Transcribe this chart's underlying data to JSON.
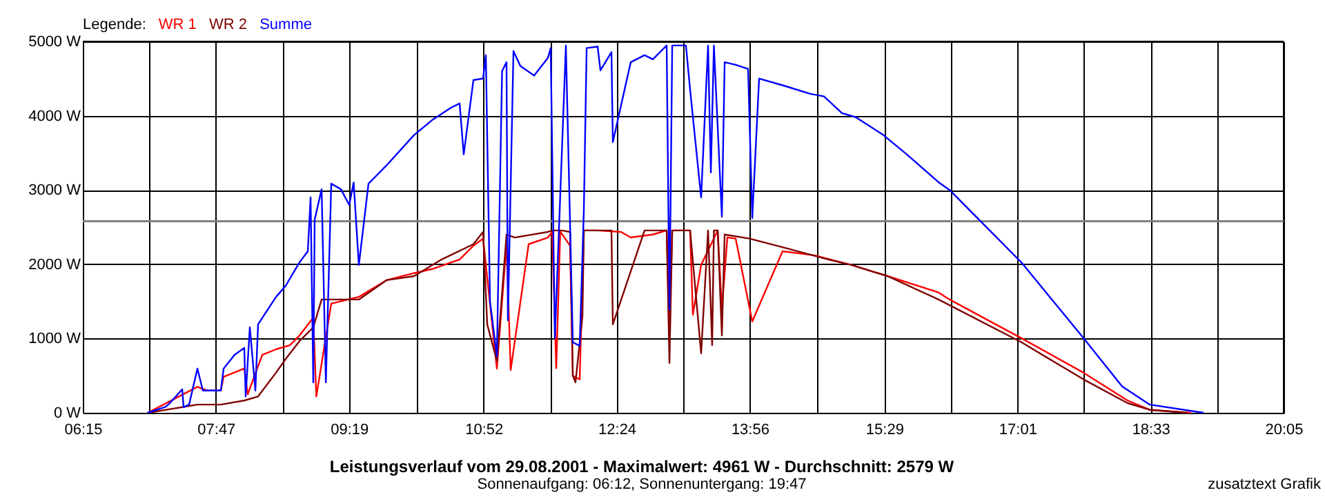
{
  "chart_data": {
    "type": "line",
    "title": "Leistungsverlauf vom 29.08.2001 - Maximalwert: 4961 W - Durchschnitt: 2579 W",
    "subtitle": "Sonnenaufgang: 06:12, Sonnenuntergang: 19:47",
    "legend_title": "Legende:",
    "legend": "top left",
    "annotations": [
      "zusatztext Grafik"
    ],
    "xlim": [
      6.25,
      20.083
    ],
    "xticks": [
      {
        "value": 6.25,
        "label": "06:15"
      },
      {
        "value": 7.017,
        "label": null
      },
      {
        "value": 7.783,
        "label": "07:47"
      },
      {
        "value": 8.55,
        "label": null
      },
      {
        "value": 9.317,
        "label": "09:19"
      },
      {
        "value": 10.092,
        "label": null
      },
      {
        "value": 10.867,
        "label": "10:52"
      },
      {
        "value": 11.633,
        "label": null
      },
      {
        "value": 12.4,
        "label": "12:24"
      },
      {
        "value": 13.167,
        "label": null
      },
      {
        "value": 13.933,
        "label": "13:56"
      },
      {
        "value": 14.708,
        "label": null
      },
      {
        "value": 15.483,
        "label": "15:29"
      },
      {
        "value": 16.25,
        "label": null
      },
      {
        "value": 17.017,
        "label": "17:01"
      },
      {
        "value": 17.783,
        "label": null
      },
      {
        "value": 18.55,
        "label": "18:33"
      },
      {
        "value": 19.317,
        "label": null
      },
      {
        "value": 20.083,
        "label": "20:05"
      }
    ],
    "ylim": [
      0,
      5000
    ],
    "yticks": [
      {
        "value": 0,
        "label": "0 W"
      },
      {
        "value": 1000,
        "label": "1000 W"
      },
      {
        "value": 2000,
        "label": "2000 W"
      },
      {
        "value": 3000,
        "label": "3000 W"
      },
      {
        "value": 4000,
        "label": "4000 W"
      },
      {
        "value": 5000,
        "label": "5000 W"
      }
    ],
    "grid": true,
    "marker": "none",
    "line_style": "solid",
    "ref_lines": [
      {
        "axis": "y",
        "value": 2579,
        "color": "#808080"
      }
    ],
    "series": [
      {
        "name": "WR 1",
        "color": "#ff0000",
        "x": [
          6.997,
          7.57,
          7.681,
          7.84,
          7.872,
          8.11,
          8.15,
          8.317,
          8.476,
          8.635,
          8.746,
          8.905,
          8.94,
          9.112,
          9.43,
          9.748,
          10.066,
          10.273,
          10.591,
          10.75,
          10.861,
          11.02,
          11.131,
          11.179,
          11.386,
          11.608,
          11.656,
          11.704,
          11.75,
          11.863,
          11.895,
          11.974,
          12.022,
          12.181,
          12.451,
          12.562,
          12.817,
          12.976,
          13.008,
          13.04,
          13.246,
          13.278,
          13.373,
          13.564,
          13.612,
          13.675,
          13.771,
          13.962,
          14.311,
          14.677,
          15.106,
          15.52,
          16.108,
          16.235,
          17.062,
          17.778,
          18.286,
          18.541,
          19.018
        ],
        "values": [
          0,
          350,
          300,
          300,
          485,
          595,
          250,
          780,
          855,
          910,
          1040,
          1280,
          220,
          1470,
          1560,
          1785,
          1880,
          1935,
          2065,
          2250,
          2345,
          595,
          2270,
          575,
          2270,
          2360,
          2435,
          600,
          2440,
          2250,
          500,
          450,
          2455,
          2455,
          2435,
          2360,
          2400,
          2455,
          1135,
          2455,
          2455,
          1320,
          1990,
          2455,
          1390,
          2360,
          2345,
          1230,
          2175,
          2120,
          1990,
          1840,
          1620,
          1525,
          1005,
          540,
          165,
          40,
          0
        ]
      },
      {
        "name": "WR 2",
        "color": "#800000",
        "x": [
          6.997,
          7.57,
          7.84,
          8.11,
          8.269,
          8.476,
          8.587,
          8.746,
          8.905,
          9.001,
          9.223,
          9.43,
          9.748,
          10.066,
          10.384,
          10.75,
          10.861,
          10.909,
          11.02,
          11.131,
          11.227,
          11.608,
          11.656,
          11.767,
          11.863,
          11.895,
          11.926,
          12.006,
          12.022,
          12.34,
          12.356,
          12.721,
          12.976,
          13.008,
          13.04,
          13.246,
          13.373,
          13.453,
          13.5,
          13.52,
          13.564,
          13.612,
          13.644,
          13.93,
          14.311,
          14.836,
          15.106,
          15.52,
          16.108,
          17.062,
          17.778,
          18.286,
          18.541,
          18.97
        ],
        "values": [
          0,
          110,
          110,
          165,
          220,
          540,
          725,
          965,
          1150,
          1525,
          1525,
          1525,
          1785,
          1840,
          2065,
          2270,
          2435,
          1190,
          700,
          2400,
          2360,
          2435,
          2455,
          2455,
          2435,
          500,
          410,
          1300,
          2455,
          2455,
          1190,
          2455,
          2455,
          670,
          2455,
          2455,
          800,
          2455,
          910,
          2455,
          2455,
          1040,
          2400,
          2345,
          2230,
          2065,
          1990,
          1840,
          1525,
          950,
          450,
          130,
          40,
          0
        ]
      },
      {
        "name": "Summe",
        "color": "#0000ff",
        "x": [
          6.997,
          7.204,
          7.252,
          7.395,
          7.411,
          7.474,
          7.57,
          7.633,
          7.84,
          7.872,
          7.999,
          8.11,
          8.126,
          8.174,
          8.238,
          8.269,
          8.476,
          8.587,
          8.746,
          8.842,
          8.874,
          8.905,
          8.921,
          9.001,
          9.05,
          9.112,
          9.223,
          9.319,
          9.37,
          9.43,
          9.541,
          9.748,
          10.066,
          10.273,
          10.495,
          10.591,
          10.638,
          10.75,
          10.861,
          10.893,
          10.941,
          11.02,
          11.08,
          11.131,
          11.147,
          11.211,
          11.29,
          11.449,
          11.608,
          11.64,
          11.688,
          11.815,
          11.895,
          11.974,
          12.022,
          12.054,
          12.181,
          12.213,
          12.34,
          12.356,
          12.562,
          12.721,
          12.817,
          12.976,
          13.008,
          13.04,
          13.198,
          13.246,
          13.373,
          13.453,
          13.485,
          13.52,
          13.612,
          13.644,
          13.771,
          13.914,
          13.962,
          14.041,
          14.311,
          14.629,
          14.788,
          14.995,
          15.154,
          15.472,
          15.742,
          16.108,
          16.235,
          17.062,
          17.778,
          18.223,
          18.541,
          19.161
        ],
        "values": [
          0,
          80,
          130,
          316,
          75,
          110,
          595,
          300,
          300,
          595,
          780,
          875,
          220,
          1150,
          300,
          1190,
          1560,
          1710,
          2025,
          2175,
          2900,
          410,
          2600,
          3010,
          410,
          3085,
          3010,
          2800,
          3100,
          1990,
          3085,
          3330,
          3740,
          3940,
          4110,
          4165,
          3480,
          4480,
          4500,
          4815,
          1500,
          760,
          4600,
          4720,
          1245,
          4870,
          4670,
          4540,
          4780,
          4910,
          1005,
          4945,
          950,
          900,
          2730,
          4910,
          4930,
          4610,
          4855,
          3645,
          4720,
          4815,
          4760,
          4945,
          1390,
          4945,
          4945,
          4350,
          2900,
          4945,
          3235,
          4945,
          2640,
          4720,
          4685,
          4630,
          2620,
          4500,
          4410,
          4295,
          4260,
          4035,
          3980,
          3740,
          3480,
          3105,
          3000,
          2025,
          1005,
          355,
          110,
          0
        ]
      }
    ]
  }
}
